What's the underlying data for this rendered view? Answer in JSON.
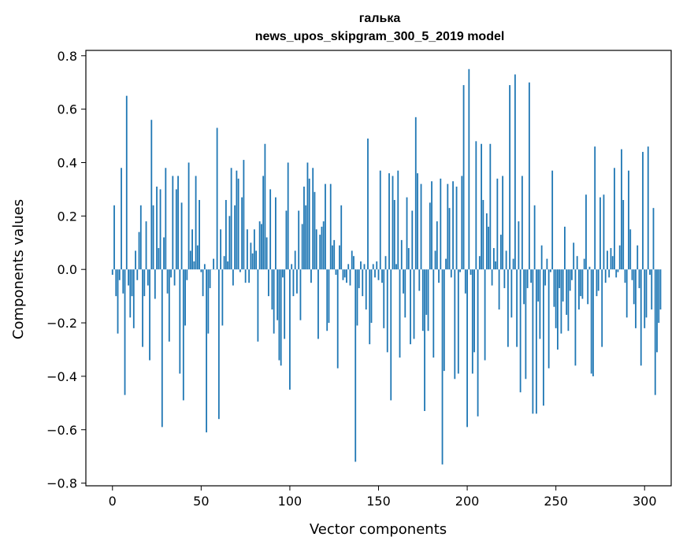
{
  "chart_data": {
    "type": "bar",
    "title_line1": "галька",
    "title_line2": "news_upos_skipgram_300_5_2019 model",
    "xlabel": "Vector components",
    "ylabel": "Components values",
    "xlim": [
      -15,
      315
    ],
    "ylim": [
      -0.81,
      0.82
    ],
    "xticks": [
      0,
      50,
      100,
      150,
      200,
      250,
      300
    ],
    "yticks": [
      -0.8,
      -0.6,
      -0.4,
      -0.2,
      0.0,
      0.2,
      0.4,
      0.6,
      0.8
    ],
    "grid": false,
    "bar_color": "#1f77b4",
    "x_start": 0,
    "values": [
      -0.02,
      0.24,
      -0.1,
      -0.24,
      -0.04,
      0.38,
      -0.09,
      -0.47,
      0.65,
      -0.06,
      -0.18,
      -0.1,
      -0.22,
      0.07,
      -0.04,
      0.14,
      0.24,
      -0.29,
      -0.1,
      0.18,
      -0.06,
      -0.34,
      0.56,
      0.24,
      -0.11,
      0.31,
      0.08,
      0.3,
      -0.59,
      0.12,
      0.38,
      -0.09,
      -0.27,
      -0.03,
      0.35,
      -0.06,
      0.3,
      0.35,
      -0.39,
      0.25,
      -0.49,
      -0.21,
      -0.04,
      0.4,
      0.07,
      0.15,
      0.03,
      0.35,
      0.09,
      0.26,
      -0.01,
      -0.1,
      0.02,
      -0.61,
      -0.24,
      -0.07,
      0.0,
      0.04,
      0.0,
      0.53,
      -0.56,
      0.15,
      -0.21,
      0.05,
      0.26,
      0.03,
      0.2,
      0.38,
      -0.06,
      0.24,
      0.37,
      0.34,
      -0.01,
      0.27,
      0.41,
      -0.05,
      0.15,
      -0.05,
      0.1,
      0.06,
      0.15,
      0.07,
      -0.27,
      0.18,
      0.17,
      0.35,
      0.47,
      0.12,
      -0.1,
      0.3,
      -0.15,
      -0.24,
      0.27,
      -0.19,
      -0.34,
      -0.36,
      -0.03,
      -0.26,
      0.22,
      0.4,
      -0.45,
      0.02,
      -0.1,
      0.07,
      -0.09,
      0.22,
      -0.19,
      0.17,
      0.31,
      0.24,
      0.4,
      0.34,
      -0.05,
      0.38,
      0.29,
      0.15,
      -0.26,
      0.13,
      0.16,
      0.18,
      0.32,
      -0.23,
      -0.2,
      0.32,
      0.09,
      0.11,
      -0.02,
      -0.37,
      0.09,
      0.24,
      -0.04,
      -0.03,
      -0.05,
      0.02,
      -0.06,
      0.07,
      0.05,
      -0.72,
      -0.21,
      -0.07,
      0.03,
      -0.1,
      0.02,
      -0.15,
      0.49,
      -0.28,
      -0.2,
      0.02,
      -0.03,
      0.03,
      -0.04,
      0.37,
      -0.05,
      -0.22,
      0.05,
      -0.31,
      0.36,
      -0.49,
      0.35,
      0.26,
      0.02,
      0.37,
      -0.33,
      0.11,
      -0.09,
      -0.18,
      0.27,
      0.08,
      -0.28,
      0.22,
      -0.26,
      0.57,
      0.36,
      -0.08,
      0.32,
      -0.23,
      -0.53,
      -0.17,
      -0.23,
      0.25,
      0.33,
      -0.33,
      0.07,
      0.18,
      -0.05,
      0.34,
      -0.73,
      -0.38,
      0.04,
      0.32,
      0.23,
      -0.03,
      0.33,
      -0.41,
      0.31,
      -0.39,
      -0.01,
      0.35,
      0.69,
      -0.09,
      -0.59,
      0.75,
      -0.02,
      -0.39,
      -0.31,
      0.48,
      -0.55,
      0.05,
      0.47,
      0.26,
      -0.34,
      0.21,
      0.16,
      0.47,
      -0.06,
      0.08,
      0.03,
      0.34,
      -0.15,
      0.13,
      0.35,
      -0.07,
      0.07,
      -0.29,
      0.69,
      -0.18,
      0.04,
      0.73,
      -0.29,
      0.18,
      -0.46,
      0.35,
      -0.13,
      -0.41,
      -0.07,
      0.7,
      -0.05,
      -0.54,
      0.24,
      -0.54,
      -0.12,
      -0.26,
      0.09,
      -0.51,
      -0.06,
      0.04,
      -0.37,
      -0.01,
      0.37,
      -0.14,
      -0.22,
      -0.3,
      -0.07,
      -0.24,
      -0.12,
      0.16,
      -0.17,
      -0.23,
      -0.08,
      -0.04,
      0.1,
      -0.36,
      0.05,
      -0.15,
      -0.1,
      -0.11,
      0.04,
      0.28,
      -0.13,
      0.01,
      -0.39,
      -0.4,
      0.46,
      -0.1,
      -0.08,
      0.27,
      -0.29,
      0.28,
      -0.05,
      0.07,
      -0.03,
      0.08,
      0.05,
      0.38,
      -0.03,
      -0.01,
      0.09,
      0.45,
      0.26,
      -0.05,
      -0.18,
      0.37,
      0.15,
      -0.04,
      -0.13,
      -0.22,
      0.09,
      -0.07,
      -0.36,
      0.44,
      -0.22,
      -0.18,
      0.46,
      -0.02,
      -0.15,
      0.23,
      -0.47,
      -0.31,
      -0.2,
      -0.15
    ]
  }
}
